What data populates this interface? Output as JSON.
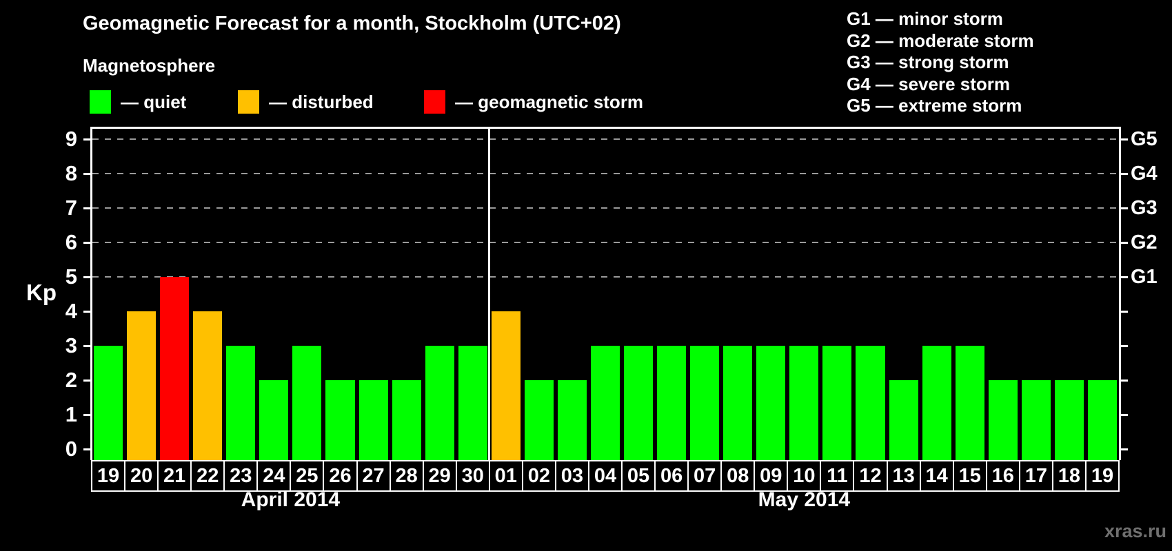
{
  "title": "Geomagnetic Forecast for a month, Stockholm (UTC+02)",
  "legend": {
    "heading": "Magnetosphere",
    "items": [
      {
        "status": "quiet",
        "label": "— quiet",
        "color": "#00ff00"
      },
      {
        "status": "disturbed",
        "label": "— disturbed",
        "color": "#ffc000"
      },
      {
        "status": "storm",
        "label": "— geomagnetic storm",
        "color": "#ff0000"
      }
    ]
  },
  "g_scale_legend": {
    "lines": [
      "G1 — minor storm",
      "G2 — moderate storm",
      "G3 — strong storm",
      "G4 — severe storm",
      "G5 — extreme storm"
    ]
  },
  "watermark": "xras.ru",
  "chart_data": {
    "type": "bar",
    "title": "Geomagnetic Forecast for a month, Stockholm (UTC+02)",
    "ylabel": "Kp",
    "ylim": [
      0,
      9
    ],
    "grid_levels": [
      5,
      6,
      7,
      8,
      9
    ],
    "y_left_ticks": [
      0,
      1,
      2,
      3,
      4,
      5,
      6,
      7,
      8,
      9
    ],
    "y_right_labels": [
      {
        "kp": 5,
        "label": "G1"
      },
      {
        "kp": 6,
        "label": "G2"
      },
      {
        "kp": 7,
        "label": "G3"
      },
      {
        "kp": 8,
        "label": "G4"
      },
      {
        "kp": 9,
        "label": "G5"
      }
    ],
    "months": [
      "April 2014",
      "May 2014"
    ],
    "colors": {
      "quiet": "#00ff00",
      "disturbed": "#ffc000",
      "storm": "#ff0000"
    },
    "points": [
      {
        "day": "19",
        "month": 0,
        "kp": 3,
        "status": "quiet"
      },
      {
        "day": "20",
        "month": 0,
        "kp": 4,
        "status": "disturbed"
      },
      {
        "day": "21",
        "month": 0,
        "kp": 5,
        "status": "storm"
      },
      {
        "day": "22",
        "month": 0,
        "kp": 4,
        "status": "disturbed"
      },
      {
        "day": "23",
        "month": 0,
        "kp": 3,
        "status": "quiet"
      },
      {
        "day": "24",
        "month": 0,
        "kp": 2,
        "status": "quiet"
      },
      {
        "day": "25",
        "month": 0,
        "kp": 3,
        "status": "quiet"
      },
      {
        "day": "26",
        "month": 0,
        "kp": 2,
        "status": "quiet"
      },
      {
        "day": "27",
        "month": 0,
        "kp": 2,
        "status": "quiet"
      },
      {
        "day": "28",
        "month": 0,
        "kp": 2,
        "status": "quiet"
      },
      {
        "day": "29",
        "month": 0,
        "kp": 3,
        "status": "quiet"
      },
      {
        "day": "30",
        "month": 0,
        "kp": 3,
        "status": "quiet"
      },
      {
        "day": "01",
        "month": 1,
        "kp": 4,
        "status": "disturbed"
      },
      {
        "day": "02",
        "month": 1,
        "kp": 2,
        "status": "quiet"
      },
      {
        "day": "03",
        "month": 1,
        "kp": 2,
        "status": "quiet"
      },
      {
        "day": "04",
        "month": 1,
        "kp": 3,
        "status": "quiet"
      },
      {
        "day": "05",
        "month": 1,
        "kp": 3,
        "status": "quiet"
      },
      {
        "day": "06",
        "month": 1,
        "kp": 3,
        "status": "quiet"
      },
      {
        "day": "07",
        "month": 1,
        "kp": 3,
        "status": "quiet"
      },
      {
        "day": "08",
        "month": 1,
        "kp": 3,
        "status": "quiet"
      },
      {
        "day": "09",
        "month": 1,
        "kp": 3,
        "status": "quiet"
      },
      {
        "day": "10",
        "month": 1,
        "kp": 3,
        "status": "quiet"
      },
      {
        "day": "11",
        "month": 1,
        "kp": 3,
        "status": "quiet"
      },
      {
        "day": "12",
        "month": 1,
        "kp": 3,
        "status": "quiet"
      },
      {
        "day": "13",
        "month": 1,
        "kp": 2,
        "status": "quiet"
      },
      {
        "day": "14",
        "month": 1,
        "kp": 3,
        "status": "quiet"
      },
      {
        "day": "15",
        "month": 1,
        "kp": 3,
        "status": "quiet"
      },
      {
        "day": "16",
        "month": 1,
        "kp": 2,
        "status": "quiet"
      },
      {
        "day": "17",
        "month": 1,
        "kp": 2,
        "status": "quiet"
      },
      {
        "day": "18",
        "month": 1,
        "kp": 2,
        "status": "quiet"
      },
      {
        "day": "19",
        "month": 1,
        "kp": 2,
        "status": "quiet"
      }
    ]
  }
}
